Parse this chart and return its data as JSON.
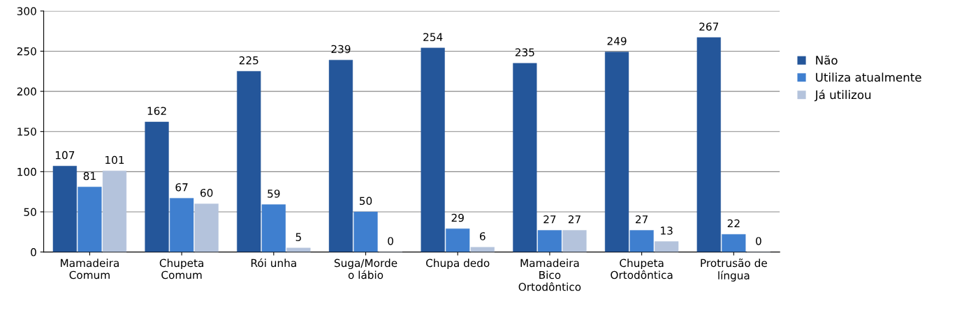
{
  "chart_data": {
    "type": "bar",
    "categories": [
      "Mamadeira\nComum",
      "Chupeta\nComum",
      "Rói unha",
      "Suga/Morde\no lábio",
      "Chupa dedo",
      "Mamadeira\nBico\nOrtodôntico",
      "Chupeta\nOrtodôntica",
      "Protrusão de\nlíngua"
    ],
    "series": [
      {
        "name": "Não",
        "color": "#24569a",
        "values": [
          107,
          162,
          225,
          239,
          254,
          235,
          249,
          267
        ]
      },
      {
        "name": "Utiliza atualmente",
        "color": "#3f7fcf",
        "values": [
          81,
          67,
          59,
          50,
          29,
          27,
          27,
          22
        ]
      },
      {
        "name": "Já utilizou",
        "color": "#b4c3dc",
        "values": [
          101,
          60,
          5,
          0,
          6,
          27,
          13,
          0
        ]
      }
    ],
    "ylim": [
      0,
      300
    ],
    "yticks": [
      0,
      50,
      100,
      150,
      200,
      250,
      300
    ],
    "grid": "y",
    "legend": "right",
    "data_labels": true
  }
}
